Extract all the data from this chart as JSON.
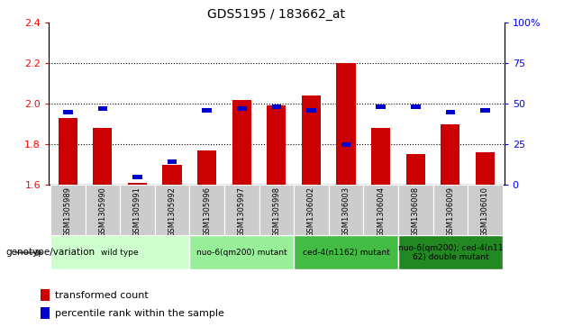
{
  "title": "GDS5195 / 183662_at",
  "samples": [
    "GSM1305989",
    "GSM1305990",
    "GSM1305991",
    "GSM1305992",
    "GSM1305996",
    "GSM1305997",
    "GSM1305998",
    "GSM1306002",
    "GSM1306003",
    "GSM1306004",
    "GSM1306008",
    "GSM1306009",
    "GSM1306010"
  ],
  "transformed_count": [
    1.93,
    1.88,
    1.61,
    1.7,
    1.77,
    2.02,
    1.99,
    2.04,
    2.2,
    1.88,
    1.75,
    1.9,
    1.76
  ],
  "percentile_rank": [
    45,
    47,
    5,
    14,
    46,
    47,
    48,
    46,
    25,
    48,
    48,
    45,
    46
  ],
  "ymin": 1.6,
  "ymax": 2.4,
  "y_ticks": [
    1.6,
    1.8,
    2.0,
    2.2,
    2.4
  ],
  "right_yticks": [
    0,
    25,
    50,
    75,
    100
  ],
  "bar_color": "#cc0000",
  "percentile_color": "#0000cc",
  "group_colors": [
    "#ccffcc",
    "#99ee99",
    "#44bb44",
    "#228822"
  ],
  "xlabel_area_color": "#cccccc",
  "legend_red_label": "transformed count",
  "legend_blue_label": "percentile rank within the sample",
  "genotype_label": "genotype/variation"
}
